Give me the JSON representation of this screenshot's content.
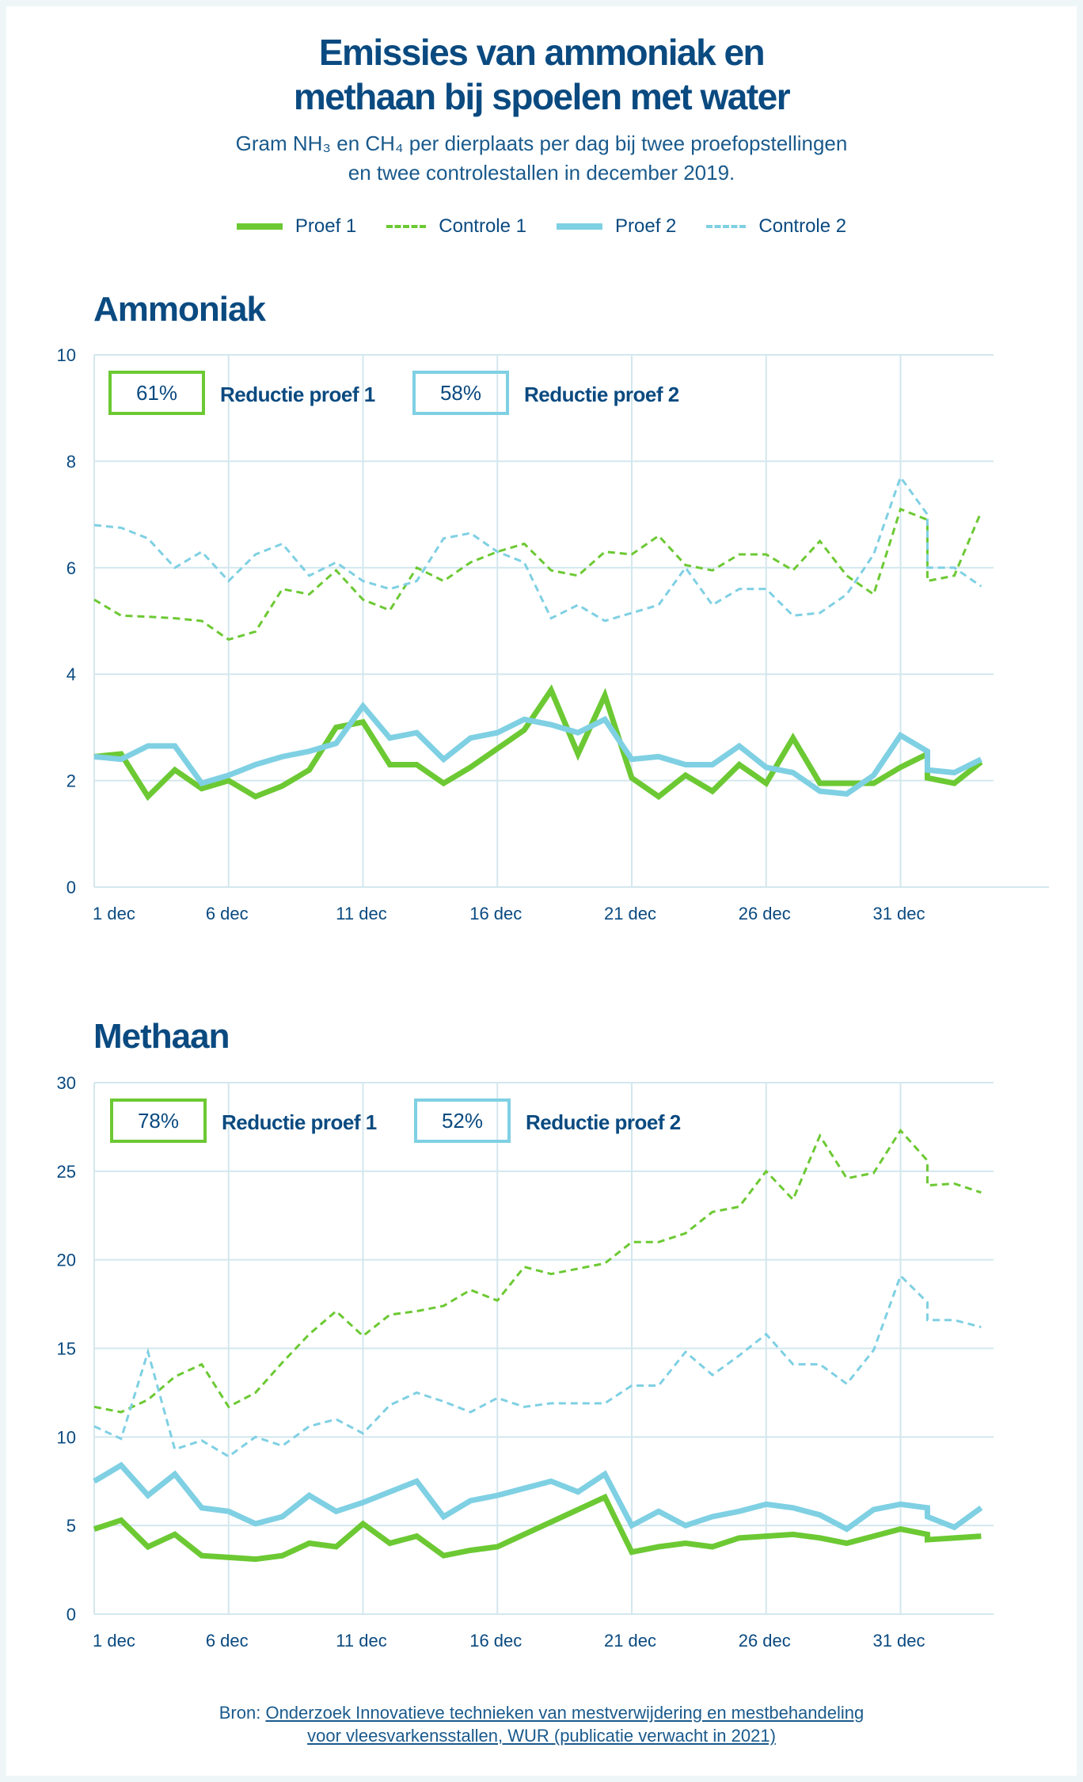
{
  "title_line1": "Emissies van ammoniak en",
  "title_line2": "methaan bij spoelen met water",
  "subtitle_line1": "Gram NH₃ en CH₄ per dierplaats per dag bij twee proefopstellingen",
  "subtitle_line2": "en twee controlestallen in december 2019.",
  "legend": [
    {
      "label": "Proef 1",
      "color": "#6cc933",
      "style": "solid"
    },
    {
      "label": "Controle 1",
      "color": "#6cc933",
      "style": "dashed"
    },
    {
      "label": "Proef 2",
      "color": "#7fd0e3",
      "style": "solid"
    },
    {
      "label": "Controle 2",
      "color": "#7fd0e3",
      "style": "dashed"
    }
  ],
  "source": {
    "prefix": "Bron: ",
    "link_line1": "Onderzoek Innovatieve technieken van mestverwijdering en mestbehandeling",
    "link_line2": "voor vleesvarkensstallen, WUR (publicatie verwacht in 2021)"
  },
  "chart_data": [
    {
      "type": "line",
      "title": "Ammoniak",
      "xlabel": "",
      "ylabel": "",
      "ylim": [
        0,
        10
      ],
      "yticks": [
        0,
        2,
        4,
        6,
        8,
        10
      ],
      "xticks": [
        {
          "x": 1,
          "label": "1 dec"
        },
        {
          "x": 6,
          "label": "6 dec"
        },
        {
          "x": 11,
          "label": "11 dec"
        },
        {
          "x": 16,
          "label": "16 dec"
        },
        {
          "x": 21,
          "label": "21 dec"
        },
        {
          "x": 26,
          "label": "26 dec"
        },
        {
          "x": 31,
          "label": "31 dec"
        }
      ],
      "xlim": [
        1,
        36
      ],
      "grid": true,
      "annotations": [
        {
          "value": "61%",
          "label": "Reductie proef 1",
          "color": "#6cc933"
        },
        {
          "value": "58%",
          "label": "Reductie proef 2",
          "color": "#7fd0e3"
        }
      ],
      "x": [
        1,
        2,
        3,
        4,
        5,
        6,
        7,
        8,
        9,
        10,
        11,
        12,
        13,
        14,
        15,
        16,
        17,
        18,
        19,
        20,
        21,
        22,
        23,
        24,
        25,
        26,
        27,
        28,
        29,
        30,
        31,
        32,
        32,
        33,
        34
      ],
      "series": [
        {
          "name": "Controle 1",
          "color": "#6cc933",
          "style": "dashed",
          "values": [
            5.4,
            5.1,
            5.08,
            5.05,
            5.0,
            4.65,
            4.8,
            5.6,
            5.5,
            5.95,
            5.4,
            5.2,
            6.0,
            5.75,
            6.1,
            6.3,
            6.45,
            5.95,
            5.85,
            6.3,
            6.25,
            6.6,
            6.05,
            5.95,
            6.25,
            6.25,
            5.95,
            6.5,
            5.85,
            5.5,
            7.1,
            6.9,
            5.75,
            5.85,
            7.05
          ]
        },
        {
          "name": "Controle 2",
          "color": "#7fd0e3",
          "style": "dashed",
          "values": [
            6.8,
            6.75,
            6.55,
            6.0,
            6.3,
            5.75,
            6.25,
            6.45,
            5.85,
            6.1,
            5.75,
            5.6,
            5.75,
            6.55,
            6.65,
            6.3,
            6.1,
            5.05,
            5.3,
            5.0,
            5.15,
            5.3,
            6.0,
            5.3,
            5.6,
            5.6,
            5.1,
            5.15,
            5.5,
            6.25,
            7.7,
            7.0,
            6.0,
            6.0,
            5.65
          ]
        },
        {
          "name": "Proef 1",
          "color": "#6cc933",
          "style": "solid",
          "values": [
            2.45,
            2.5,
            1.7,
            2.2,
            1.85,
            2.0,
            1.7,
            1.9,
            2.2,
            3.0,
            3.1,
            2.3,
            2.3,
            1.95,
            2.25,
            2.6,
            2.95,
            3.7,
            2.5,
            3.6,
            2.05,
            1.7,
            2.1,
            1.8,
            2.3,
            1.95,
            2.8,
            1.95,
            1.95,
            1.95,
            2.25,
            2.5,
            2.05,
            1.95,
            2.35
          ]
        },
        {
          "name": "Proef 2",
          "color": "#7fd0e3",
          "style": "solid",
          "values": [
            2.45,
            2.4,
            2.65,
            2.65,
            1.95,
            2.1,
            2.3,
            2.45,
            2.55,
            2.7,
            3.4,
            2.8,
            2.9,
            2.4,
            2.8,
            2.9,
            3.15,
            3.05,
            2.9,
            3.15,
            2.4,
            2.45,
            2.3,
            2.3,
            2.65,
            2.25,
            2.15,
            1.8,
            1.75,
            2.1,
            2.85,
            2.55,
            2.2,
            2.15,
            2.4
          ]
        }
      ]
    },
    {
      "type": "line",
      "title": "Methaan",
      "xlabel": "",
      "ylabel": "",
      "ylim": [
        0,
        30
      ],
      "yticks": [
        0,
        5,
        10,
        15,
        20,
        25,
        30
      ],
      "xticks": [
        {
          "x": 1,
          "label": "1 dec"
        },
        {
          "x": 6,
          "label": "6 dec"
        },
        {
          "x": 11,
          "label": "11 dec"
        },
        {
          "x": 16,
          "label": "16 dec"
        },
        {
          "x": 21,
          "label": "21 dec"
        },
        {
          "x": 26,
          "label": "26 dec"
        },
        {
          "x": 31,
          "label": "31 dec"
        }
      ],
      "xlim": [
        1,
        34.5
      ],
      "grid": true,
      "annotations": [
        {
          "value": "78%",
          "label": "Reductie proef 1",
          "color": "#6cc933"
        },
        {
          "value": "52%",
          "label": "Reductie proef 2",
          "color": "#7fd0e3"
        }
      ],
      "x": [
        1,
        2,
        3,
        4,
        5,
        6,
        7,
        8,
        9,
        10,
        11,
        12,
        13,
        14,
        15,
        16,
        17,
        18,
        19,
        20,
        21,
        22,
        23,
        24,
        25,
        26,
        27,
        28,
        29,
        30,
        31,
        32,
        32,
        33,
        34
      ],
      "series": [
        {
          "name": "Controle 1",
          "color": "#6cc933",
          "style": "dashed",
          "values": [
            11.7,
            11.4,
            12.1,
            13.4,
            14.1,
            11.7,
            12.5,
            14.2,
            15.8,
            17.1,
            15.7,
            16.9,
            17.1,
            17.4,
            18.3,
            17.7,
            19.6,
            19.2,
            19.5,
            19.8,
            21.0,
            21.0,
            21.5,
            22.7,
            23.0,
            25.0,
            23.4,
            27.0,
            24.6,
            24.9,
            27.3,
            25.6,
            24.2,
            24.3,
            23.8
          ]
        },
        {
          "name": "Controle 2",
          "color": "#7fd0e3",
          "style": "dashed",
          "values": [
            10.6,
            9.9,
            14.8,
            9.3,
            9.8,
            8.9,
            10.0,
            9.5,
            10.6,
            11.0,
            10.2,
            11.8,
            12.5,
            12.0,
            11.4,
            12.2,
            11.7,
            11.9,
            11.9,
            11.9,
            12.9,
            12.9,
            14.8,
            13.5,
            14.6,
            15.8,
            14.1,
            14.1,
            13.0,
            14.9,
            19.1,
            17.6,
            16.6,
            16.6,
            16.2
          ]
        },
        {
          "name": "Proef 1",
          "color": "#6cc933",
          "style": "solid",
          "values": [
            4.8,
            5.3,
            3.8,
            4.5,
            3.3,
            3.2,
            3.1,
            3.3,
            4.0,
            3.8,
            5.1,
            4.0,
            4.4,
            3.3,
            3.6,
            3.8,
            4.5,
            5.2,
            5.9,
            6.6,
            3.5,
            3.8,
            4.0,
            3.8,
            4.3,
            4.4,
            4.5,
            4.3,
            4.0,
            4.4,
            4.8,
            4.5,
            4.2,
            4.3,
            4.4
          ]
        },
        {
          "name": "Proef 2",
          "color": "#7fd0e3",
          "style": "solid",
          "values": [
            7.5,
            8.4,
            6.7,
            7.9,
            6.0,
            5.8,
            5.1,
            5.5,
            6.7,
            5.8,
            6.3,
            6.9,
            7.5,
            5.5,
            6.4,
            6.7,
            7.1,
            7.5,
            6.9,
            7.9,
            5.0,
            5.8,
            5.0,
            5.5,
            5.8,
            6.2,
            6.0,
            5.6,
            4.8,
            5.9,
            6.2,
            6.0,
            5.5,
            4.9,
            6.0
          ]
        }
      ]
    }
  ]
}
